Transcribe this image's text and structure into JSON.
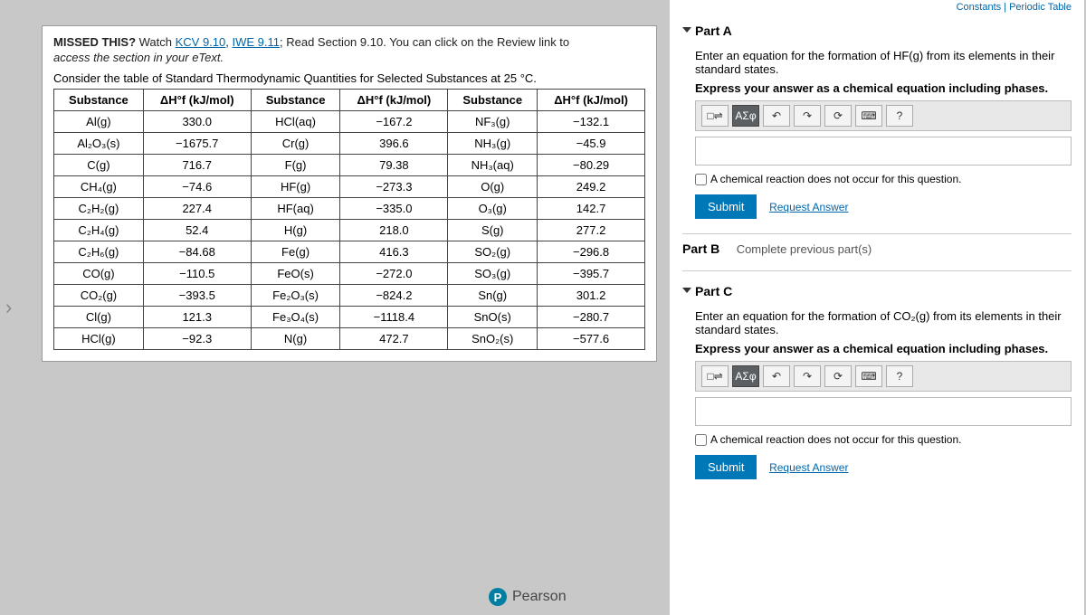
{
  "top_strip": "Constants | Periodic Table",
  "missed": {
    "prefix": "MISSED THIS? ",
    "watch": "Watch ",
    "kcv": "KCV 9.10",
    "comma": ", ",
    "iwe": "IWE 9.11",
    "rest": "; Read Section 9.10. You can click on the Review link to",
    "line2a": "access the section in your ",
    "line2b": "eText."
  },
  "consider": "Consider the table of Standard Thermodynamic Quantities for Selected Substances at 25 °C.",
  "table": {
    "headers": [
      "Substance",
      "ΔH°f (kJ/mol)",
      "Substance",
      "ΔH°f (kJ/mol)",
      "Substance",
      "ΔH°f (kJ/mol)"
    ],
    "rows": [
      [
        "Al(g)",
        "330.0",
        "HCl(aq)",
        "−167.2",
        "NF₃(g)",
        "−132.1"
      ],
      [
        "Al₂O₃(s)",
        "−1675.7",
        "Cr(g)",
        "396.6",
        "NH₃(g)",
        "−45.9"
      ],
      [
        "C(g)",
        "716.7",
        "F(g)",
        "79.38",
        "NH₃(aq)",
        "−80.29"
      ],
      [
        "CH₄(g)",
        "−74.6",
        "HF(g)",
        "−273.3",
        "O(g)",
        "249.2"
      ],
      [
        "C₂H₂(g)",
        "227.4",
        "HF(aq)",
        "−335.0",
        "O₃(g)",
        "142.7"
      ],
      [
        "C₂H₄(g)",
        "52.4",
        "H(g)",
        "218.0",
        "S(g)",
        "277.2"
      ],
      [
        "C₂H₆(g)",
        "−84.68",
        "Fe(g)",
        "416.3",
        "SO₂(g)",
        "−296.8"
      ],
      [
        "CO(g)",
        "−110.5",
        "FeO(s)",
        "−272.0",
        "SO₃(g)",
        "−395.7"
      ],
      [
        "CO₂(g)",
        "−393.5",
        "Fe₂O₃(s)",
        "−824.2",
        "Sn(g)",
        "301.2"
      ],
      [
        "Cl(g)",
        "121.3",
        "Fe₃O₄(s)",
        "−1118.4",
        "SnO(s)",
        "−280.7"
      ],
      [
        "HCl(g)",
        "−92.3",
        "N(g)",
        "472.7",
        "SnO₂(s)",
        "−577.6"
      ]
    ]
  },
  "partA": {
    "title": "Part A",
    "prompt1": "Enter an equation for the formation of HF(g) from its elements in their standard states.",
    "prompt2": "Express your answer as a chemical equation including phases.",
    "checkbox": "A chemical reaction does not occur for this question.",
    "submit": "Submit",
    "request": "Request Answer"
  },
  "partB": {
    "title": "Part B",
    "msg": "Complete previous part(s)"
  },
  "partC": {
    "title": "Part C",
    "prompt1": "Enter an equation for the formation of CO₂(g) from its elements in their standard states.",
    "prompt2": "Express your answer as a chemical equation including phases.",
    "checkbox": "A chemical reaction does not occur for this question.",
    "submit": "Submit",
    "request": "Request Answer"
  },
  "toolbar": {
    "t1": "□⇌",
    "t2": "ΑΣφ",
    "undo": "↶",
    "redo": "↷",
    "reset": "⟳",
    "keyboard": "⌨",
    "help": "?"
  },
  "pearson": "Pearson"
}
